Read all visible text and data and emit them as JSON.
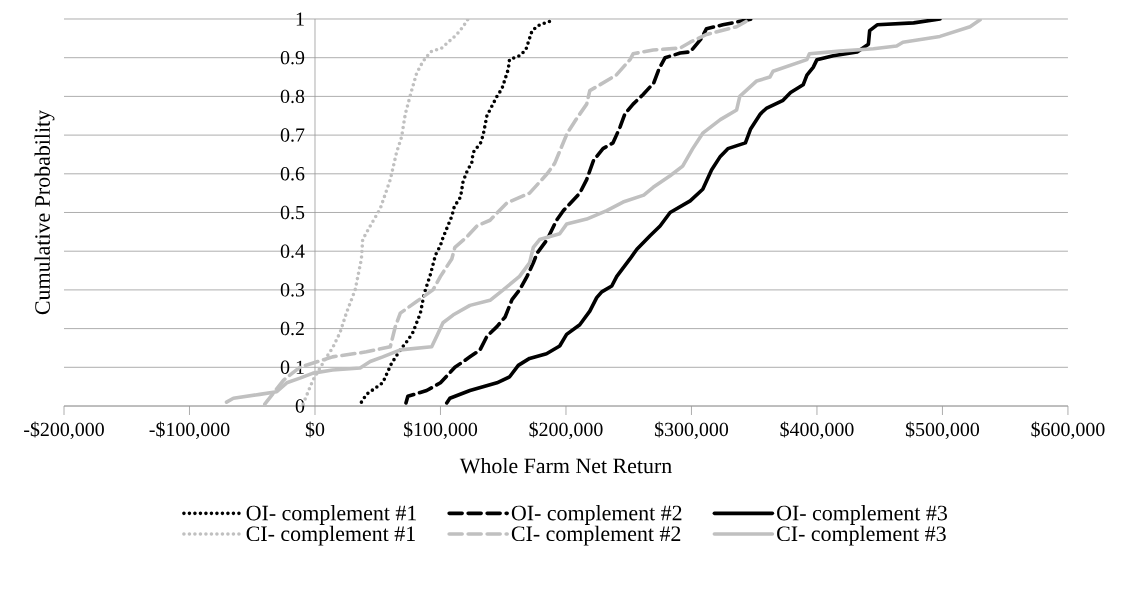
{
  "chart_data": {
    "type": "line",
    "xlabel": "Whole Farm Net Return",
    "ylabel": "Cumulative Probability",
    "xlim": [
      -200000,
      600000
    ],
    "ylim": [
      0,
      1
    ],
    "xticks": [
      {
        "value": -200000,
        "label": "-$200,000"
      },
      {
        "value": -100000,
        "label": "-$100,000"
      },
      {
        "value": 0,
        "label": "$0"
      },
      {
        "value": 100000,
        "label": "$100,000"
      },
      {
        "value": 200000,
        "label": "$200,000"
      },
      {
        "value": 300000,
        "label": "$300,000"
      },
      {
        "value": 400000,
        "label": "$400,000"
      },
      {
        "value": 500000,
        "label": "$500,000"
      },
      {
        "value": 600000,
        "label": "$600,000"
      }
    ],
    "yticks": [
      0,
      0.1,
      0.2,
      0.3,
      0.4,
      0.5,
      0.6,
      0.7,
      0.8,
      0.9,
      1
    ],
    "grid": "y",
    "legend": "bottom",
    "series": [
      {
        "name": "OI- complement #1",
        "color": "#000000",
        "line_style": "dotted",
        "x": [
          37000,
          41000,
          54000,
          61000,
          68000,
          74000,
          78000,
          84000,
          87000,
          92000,
          96000,
          100000,
          102000,
          109000,
          111000,
          116000,
          118000,
          121000,
          125000,
          126000,
          132000,
          134000,
          137000,
          141000,
          145000,
          149000,
          154000,
          155000,
          163000,
          168000,
          171000,
          173000,
          179000,
          188000
        ],
        "values": [
          0.01,
          0.03,
          0.06,
          0.11,
          0.145,
          0.17,
          0.19,
          0.24,
          0.29,
          0.34,
          0.39,
          0.415,
          0.435,
          0.49,
          0.515,
          0.54,
          0.58,
          0.605,
          0.63,
          0.655,
          0.68,
          0.7,
          0.75,
          0.775,
          0.8,
          0.82,
          0.87,
          0.895,
          0.905,
          0.92,
          0.95,
          0.97,
          0.985,
          0.995
        ]
      },
      {
        "name": "OI- complement #2",
        "color": "#000000",
        "line_style": "dashed",
        "x": [
          72500,
          74000,
          89000,
          100000,
          111500,
          123500,
          131500,
          137000,
          145000,
          151500,
          157000,
          163000,
          169000,
          174000,
          177000,
          185000,
          192500,
          198000,
          211000,
          216500,
          222000,
          229500,
          237500,
          243000,
          247000,
          253500,
          261500,
          270000,
          274000,
          279000,
          291000,
          299000,
          308000,
          312000,
          325000,
          348000
        ],
        "values": [
          0.008,
          0.025,
          0.04,
          0.06,
          0.1,
          0.127,
          0.145,
          0.18,
          0.205,
          0.23,
          0.275,
          0.3,
          0.335,
          0.37,
          0.395,
          0.43,
          0.48,
          0.505,
          0.55,
          0.585,
          0.635,
          0.665,
          0.68,
          0.72,
          0.755,
          0.78,
          0.805,
          0.835,
          0.87,
          0.9,
          0.912,
          0.915,
          0.95,
          0.975,
          0.985,
          1
        ]
      },
      {
        "name": "OI- complement #3",
        "color": "#000000",
        "line_style": "solid",
        "x": [
          105000,
          107500,
          123500,
          145000,
          155000,
          162000,
          171000,
          184500,
          195000,
          200500,
          211000,
          219000,
          224500,
          228500,
          236500,
          240500,
          251000,
          256500,
          267000,
          275000,
          283000,
          299000,
          309000,
          316000,
          323000,
          329000,
          343000,
          347000,
          355000,
          360000,
          373000,
          379000,
          389000,
          392000,
          397000,
          400000,
          413000,
          432000,
          441000,
          442000,
          448000,
          477000,
          498000
        ],
        "values": [
          0.008,
          0.02,
          0.04,
          0.06,
          0.075,
          0.105,
          0.123,
          0.135,
          0.155,
          0.185,
          0.21,
          0.245,
          0.28,
          0.295,
          0.31,
          0.335,
          0.38,
          0.405,
          0.44,
          0.465,
          0.5,
          0.53,
          0.56,
          0.61,
          0.645,
          0.665,
          0.68,
          0.715,
          0.755,
          0.77,
          0.79,
          0.81,
          0.83,
          0.855,
          0.875,
          0.895,
          0.905,
          0.915,
          0.935,
          0.97,
          0.985,
          0.99,
          1
        ]
      },
      {
        "name": "CI- complement #1",
        "color": "#c0c0c0",
        "line_style": "dotted",
        "x": [
          -9500,
          -1600,
          8000,
          14000,
          20000,
          25000,
          32000,
          37000,
          38000,
          44000,
          52000,
          60000,
          65000,
          69000,
          72000,
          77000,
          81000,
          86000,
          92000,
          101000,
          113000,
          118000,
          122000
        ],
        "values": [
          0.005,
          0.067,
          0.12,
          0.15,
          0.19,
          0.24,
          0.3,
          0.38,
          0.43,
          0.465,
          0.51,
          0.585,
          0.655,
          0.695,
          0.755,
          0.815,
          0.86,
          0.89,
          0.915,
          0.925,
          0.96,
          0.98,
          1
        ]
      },
      {
        "name": "CI- complement #2",
        "color": "#c0c0c0",
        "line_style": "dashed",
        "x": [
          -40000,
          -25000,
          -12000,
          14000,
          41000,
          60000,
          64000,
          68000,
          81000,
          94000,
          100000,
          109000,
          111500,
          121000,
          129000,
          139500,
          153000,
          171000,
          185000,
          191000,
          201000,
          209000,
          216500,
          219000,
          227000,
          240000,
          251000,
          253500,
          269500,
          291000,
          299000,
          312000,
          336000,
          347000
        ],
        "values": [
          0.005,
          0.067,
          0.1,
          0.127,
          0.14,
          0.153,
          0.205,
          0.24,
          0.27,
          0.3,
          0.335,
          0.38,
          0.41,
          0.437,
          0.465,
          0.48,
          0.525,
          0.55,
          0.6,
          0.627,
          0.705,
          0.745,
          0.78,
          0.815,
          0.83,
          0.855,
          0.895,
          0.91,
          0.92,
          0.925,
          0.94,
          0.96,
          0.98,
          1
        ]
      },
      {
        "name": "CI- complement #3",
        "color": "#c0c0c0",
        "line_style": "solid",
        "x": [
          -70500,
          -65000,
          -44000,
          -30500,
          -22500,
          -12000,
          -1500,
          14000,
          36000,
          44000,
          54000,
          68000,
          93000,
          97000,
          102000,
          110000,
          123500,
          139500,
          150000,
          163000,
          171000,
          174000,
          179000,
          195000,
          200500,
          216500,
          232500,
          245500,
          262000,
          269500,
          283000,
          293000,
          301000,
          309000,
          323000,
          336000,
          338500,
          352000,
          362500,
          365000,
          378500,
          392000,
          394000,
          418000,
          445000,
          463500,
          468500,
          498000,
          522000,
          530000
        ],
        "values": [
          0.01,
          0.02,
          0.03,
          0.037,
          0.06,
          0.072,
          0.085,
          0.093,
          0.098,
          0.115,
          0.127,
          0.145,
          0.153,
          0.18,
          0.215,
          0.235,
          0.26,
          0.273,
          0.3,
          0.335,
          0.37,
          0.41,
          0.43,
          0.445,
          0.47,
          0.483,
          0.505,
          0.527,
          0.545,
          0.565,
          0.595,
          0.62,
          0.665,
          0.705,
          0.74,
          0.765,
          0.8,
          0.84,
          0.85,
          0.865,
          0.88,
          0.895,
          0.91,
          0.917,
          0.923,
          0.93,
          0.94,
          0.955,
          0.98,
          0.998
        ]
      }
    ]
  }
}
